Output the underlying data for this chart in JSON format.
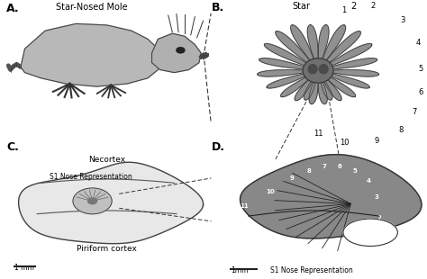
{
  "panel_labels": [
    "A.",
    "B.",
    "C.",
    "D."
  ],
  "title_A": "Star-Nosed Mole",
  "title_B_star": "Star",
  "title_B_2": "2",
  "label_necortex": "Necortex",
  "label_s1_c": "S1 Nose Representation",
  "label_piriform": "Piriform cortex",
  "label_s1_d": "S1 Nose Representation",
  "scale_C": "1 mm",
  "scale_D": "1mm",
  "body_color": "#b8b8b8",
  "head_color": "#a8a8a8",
  "star_ray_color": "#909090",
  "star_ray_edge": "#333333",
  "star_center_color": "#707070",
  "cortex_fill": "#e8e8e8",
  "cortex_edge": "#444444",
  "brain_d_fill": "#888888",
  "brain_d_edge": "#333333",
  "text_color": "#000000",
  "white": "#ffffff",
  "dashed_color": "#333333",
  "font_panel": 9,
  "font_title": 7,
  "font_label": 6.5,
  "font_num": 6
}
